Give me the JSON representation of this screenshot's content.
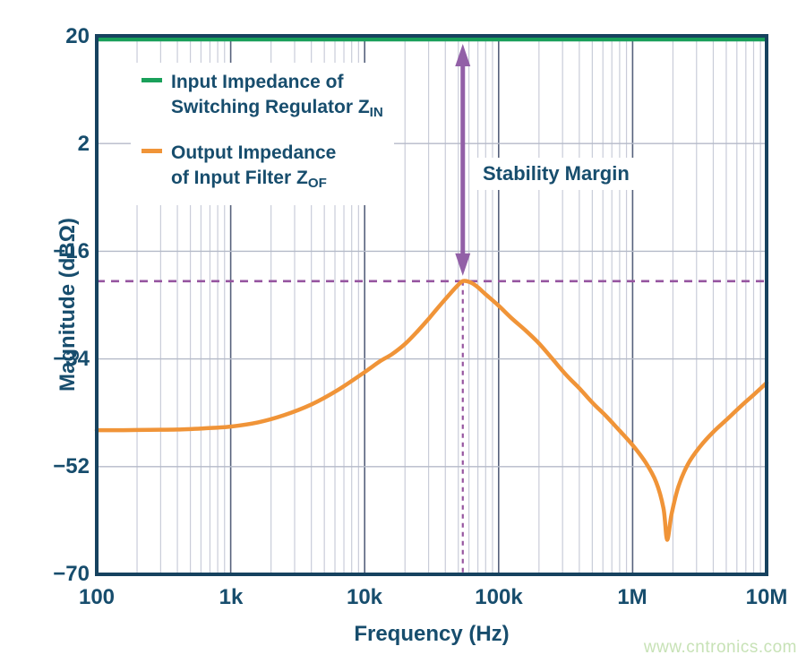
{
  "colors": {
    "navy_text": "#174d6d",
    "axis_border": "#16425f",
    "grid_minor": "#c9ccd9",
    "grid_major": "#56617c",
    "grid_horizontal": "#b4bac8",
    "green_line": "#1aa05a",
    "orange_curve": "#f09438",
    "purple_arrow": "#9260a7",
    "purple_dash": "#9655a0",
    "watermark": "#c7e2b6",
    "background": "#ffffff"
  },
  "axes": {
    "ylabel": "Magnitude (dBΩ)",
    "xlabel": "Frequency (Hz)",
    "yticks": [
      "20",
      "2",
      "−16",
      "−34",
      "−52",
      "−70"
    ],
    "xticks": [
      "100",
      "1k",
      "10k",
      "100k",
      "1M",
      "10M"
    ]
  },
  "legend": {
    "items": [
      {
        "line1": "Input Impedance of",
        "line2": "Switching Regulator Z",
        "line2_sub": "IN",
        "color": "#1aa05a"
      },
      {
        "line1": "Output Impedance",
        "line2": "of Input Filter Z",
        "line2_sub": "OF",
        "color": "#f09438"
      }
    ]
  },
  "annotation": {
    "stability_label": "Stability Margin"
  },
  "watermark": "www.cntronics.com",
  "chart_data": {
    "type": "line",
    "title": "",
    "xlabel": "Frequency (Hz)",
    "ylabel": "Magnitude (dBΩ)",
    "x_scale": "log",
    "xlim": [
      100,
      10000000
    ],
    "ylim": [
      -70,
      20
    ],
    "ytick_values": [
      20,
      2,
      -16,
      -34,
      -52,
      -70
    ],
    "xtick_values": [
      100,
      1000,
      10000,
      100000,
      1000000,
      10000000
    ],
    "grid": true,
    "legend_position": "top-left",
    "series": [
      {
        "name": "Input Impedance of Switching Regulator Z_IN",
        "color": "#1aa05a",
        "shape": "horizontal-line",
        "value_db": 19.4
      },
      {
        "name": "Output Impedance of Input Filter Z_OF",
        "color": "#f09438",
        "shape": "curve",
        "points_hz_db": [
          [
            100,
            -45.9
          ],
          [
            160,
            -45.9
          ],
          [
            250,
            -45.85
          ],
          [
            400,
            -45.8
          ],
          [
            630,
            -45.6
          ],
          [
            1000,
            -45.3
          ],
          [
            1600,
            -44.6
          ],
          [
            2500,
            -43.4
          ],
          [
            4000,
            -41.6
          ],
          [
            6300,
            -39.2
          ],
          [
            10000,
            -36.2
          ],
          [
            13000,
            -34.4
          ],
          [
            16000,
            -33.2
          ],
          [
            20000,
            -31.5
          ],
          [
            25000,
            -29.3
          ],
          [
            30000,
            -27.3
          ],
          [
            36000,
            -25.2
          ],
          [
            43000,
            -23.2
          ],
          [
            49000,
            -21.8
          ],
          [
            54000,
            -21.0
          ],
          [
            60000,
            -21.1
          ],
          [
            68000,
            -21.8
          ],
          [
            80000,
            -23.2
          ],
          [
            100000,
            -25.1
          ],
          [
            125000,
            -27.2
          ],
          [
            160000,
            -29.3
          ],
          [
            200000,
            -31.4
          ],
          [
            250000,
            -33.9
          ],
          [
            320000,
            -36.7
          ],
          [
            400000,
            -38.9
          ],
          [
            500000,
            -41.3
          ],
          [
            630000,
            -43.5
          ],
          [
            800000,
            -46.0
          ],
          [
            1000000,
            -48.4
          ],
          [
            1250000,
            -51.3
          ],
          [
            1500000,
            -54.6
          ],
          [
            1700000,
            -59.0
          ],
          [
            1810000,
            -64.2
          ],
          [
            1950000,
            -60.0
          ],
          [
            2200000,
            -55.3
          ],
          [
            2600000,
            -51.5
          ],
          [
            3200000,
            -48.6
          ],
          [
            4000000,
            -46.2
          ],
          [
            5000000,
            -44.2
          ],
          [
            6500000,
            -41.8
          ],
          [
            8000000,
            -40.0
          ],
          [
            10000000,
            -38.0
          ]
        ]
      }
    ],
    "annotations": {
      "peak": {
        "freq_hz": 54000,
        "magnitude_db": -21
      },
      "notch": {
        "freq_hz": 1810000,
        "magnitude_db": -64
      },
      "stability_margin_db": 40,
      "arrow": {
        "x_hz": 54000,
        "from_db": 19.4,
        "to_db": -21,
        "color": "#9260a7",
        "label": "Stability Margin"
      },
      "dashed_horizontal_db": -21,
      "dashed_vertical_hz": 54000
    }
  }
}
